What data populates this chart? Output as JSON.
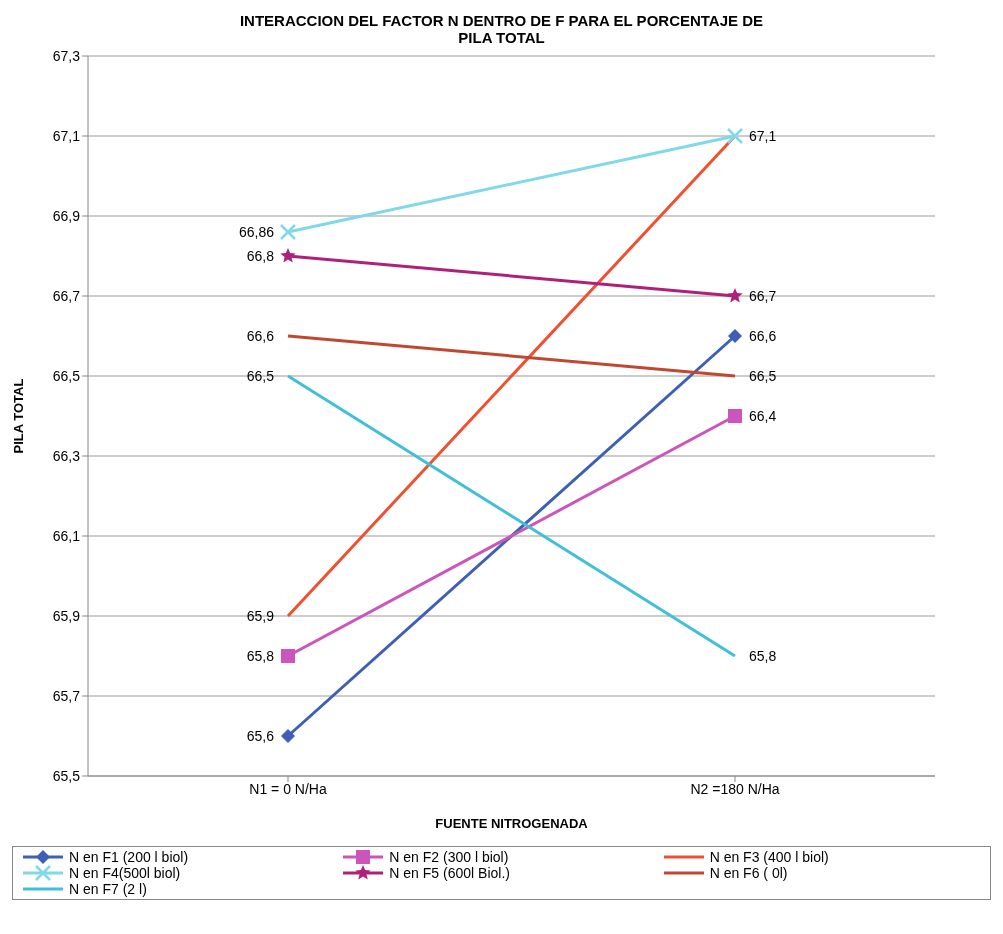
{
  "chart_data": {
    "type": "line",
    "title": "INTERACCION  DEL FACTOR N DENTRO DE F PARA EL PORCENTAJE DE PILA TOTAL",
    "xlabel": "FUENTE NITROGENADA",
    "ylabel": "PILA TOTAL",
    "categories": [
      "N1 = 0 N/Ha",
      "N2  =180 N/Ha"
    ],
    "series": [
      {
        "name": "N  en F1 (200 l  biol)",
        "color": "#3d5fb5",
        "marker": "diamond",
        "values": [
          65.6,
          66.6
        ],
        "value_labels": [
          "65,6",
          "66,6"
        ]
      },
      {
        "name": "N  en F2 (300 l biol)",
        "color": "#cc55bb",
        "marker": "square",
        "values": [
          65.8,
          66.4
        ],
        "value_labels": [
          "65,8",
          "66,4"
        ]
      },
      {
        "name": "N  en F3 (400 l biol)",
        "color": "#f05030",
        "marker": "none",
        "values": [
          65.9,
          67.1
        ],
        "value_labels": [
          "65,9",
          null
        ]
      },
      {
        "name": "N  en F4(500l biol)",
        "color": "#80d8e8",
        "marker": "cross",
        "values": [
          66.86,
          67.1
        ],
        "value_labels": [
          "66,86",
          "67,1"
        ]
      },
      {
        "name": "N  en F5 (600l Biol.)",
        "color": "#b0207a",
        "marker": "star",
        "values": [
          66.8,
          66.7
        ],
        "value_labels": [
          "66,8",
          "66,7"
        ]
      },
      {
        "name": "N  en F6 ( 0l)",
        "color": "#c04830",
        "marker": "none",
        "values": [
          66.6,
          66.5
        ],
        "value_labels": [
          "66,6",
          "66,5"
        ]
      },
      {
        "name": "N  en F7 (2 l)",
        "color": "#40c0d8",
        "marker": "none",
        "values": [
          66.5,
          65.8
        ],
        "value_labels": [
          "66,5",
          "65,8"
        ]
      }
    ],
    "ylim": [
      65.5,
      67.3
    ],
    "yticks": [
      {
        "value": 65.5,
        "label": "65,5"
      },
      {
        "value": 65.7,
        "label": "65,7"
      },
      {
        "value": 65.9,
        "label": "65,9"
      },
      {
        "value": 66.1,
        "label": "66,1"
      },
      {
        "value": 66.3,
        "label": "66,3"
      },
      {
        "value": 66.5,
        "label": "66,5"
      },
      {
        "value": 66.7,
        "label": "66,7"
      },
      {
        "value": 66.9,
        "label": "66,9"
      },
      {
        "value": 67.1,
        "label": "67,1"
      },
      {
        "value": 67.3,
        "label": "67,3"
      }
    ],
    "grid": "y",
    "legend": "bottom",
    "line_style": "solid"
  }
}
